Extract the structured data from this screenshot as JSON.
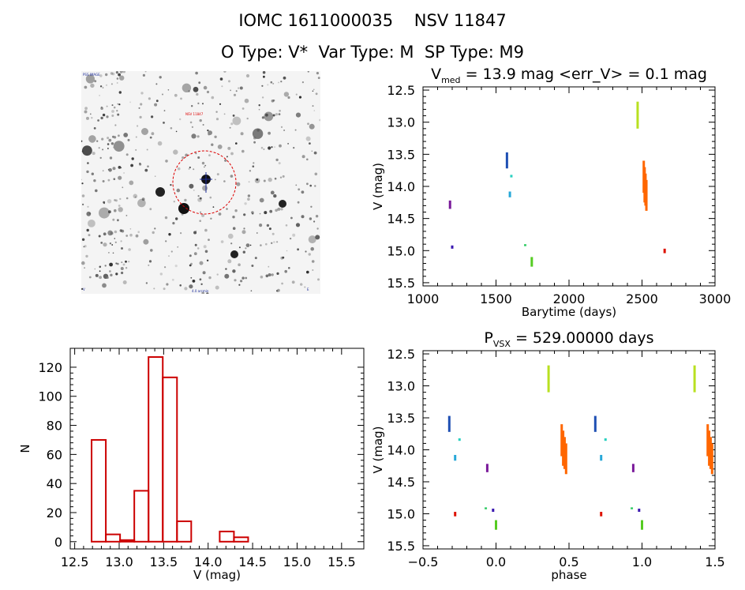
{
  "header": {
    "title_line1": "IOMC 1611000035    NSV 11847",
    "title_line2": "O Type: V*  Var Type: M  SP Type: M9"
  },
  "finder_chart": {
    "top_left_label": "PSS IMAGE",
    "target_label": "NSV 11847",
    "bottom_left_label": "V",
    "bottom_center_label": "4.0 arcmin",
    "bottom_right_label": "E"
  },
  "colors": {
    "hist_bar": "#cc0000",
    "circle": "#dd0000",
    "crosshair": "#1a2a9a"
  },
  "chart_data": [
    {
      "id": "lightcurve",
      "type": "scatter",
      "title_main": "V",
      "title_sub": "med",
      "title_rest": " = 13.9 mag <err_V> = 0.1 mag",
      "xlabel": "Barytime (days)",
      "ylabel": "V (mag)",
      "xlim": [
        1000,
        3000
      ],
      "ylim": [
        15.55,
        12.45
      ],
      "xticks": [
        "1000",
        "1500",
        "2000",
        "2500",
        "3000"
      ],
      "yticks": [
        "12.5",
        "13.0",
        "13.5",
        "14.0",
        "14.5",
        "15.0",
        "15.5"
      ],
      "series": [
        {
          "color": "#7a1a9a",
          "x": [
            1185
          ],
          "y_ranges": [
            [
              14.22,
              14.35
            ]
          ]
        },
        {
          "color": "#3a18b0",
          "x": [
            1200
          ],
          "y_ranges": [
            [
              14.92,
              14.97
            ]
          ]
        },
        {
          "color": "#1e4fb3",
          "x": [
            1575
          ],
          "y_ranges": [
            [
              13.47,
              13.72
            ]
          ]
        },
        {
          "color": "#27a8d8",
          "x": [
            1595
          ],
          "y_ranges": [
            [
              14.08,
              14.17
            ]
          ]
        },
        {
          "color": "#2ad0c0",
          "x": [
            1605
          ],
          "y_ranges": [
            [
              13.82,
              13.86
            ]
          ]
        },
        {
          "color": "#33cc66",
          "x": [
            1700
          ],
          "y_ranges": [
            [
              14.9,
              14.93
            ]
          ]
        },
        {
          "color": "#55cc22",
          "x": [
            1745
          ],
          "y_ranges": [
            [
              15.1,
              15.25
            ]
          ]
        },
        {
          "color": "#b8e020",
          "x": [
            2470
          ],
          "y_ranges": [
            [
              12.68,
              13.1
            ]
          ]
        },
        {
          "color": "#ff6600",
          "x": [
            2512,
            2518,
            2524,
            2530
          ],
          "y_ranges": [
            [
              13.6,
              14.1
            ],
            [
              13.7,
              14.25
            ],
            [
              13.8,
              14.3
            ],
            [
              13.9,
              14.38
            ]
          ]
        },
        {
          "color": "#dd1100",
          "x": [
            2655
          ],
          "y_ranges": [
            [
              14.97,
              15.04
            ]
          ]
        }
      ]
    },
    {
      "id": "histogram",
      "type": "bar",
      "xlabel": "V (mag)",
      "ylabel": "N",
      "xlim": [
        12.45,
        15.75
      ],
      "ylim": [
        -5,
        133
      ],
      "xticks": [
        "12.5",
        "13.0",
        "13.5",
        "14.0",
        "14.5",
        "15.0",
        "15.5"
      ],
      "yticks": [
        "0",
        "20",
        "40",
        "60",
        "80",
        "100",
        "120"
      ],
      "bin_width": 0.16,
      "bin_starts": [
        12.69,
        12.85,
        13.01,
        13.17,
        13.33,
        13.49,
        13.65,
        13.81,
        13.97,
        14.13,
        14.29,
        14.45,
        14.61,
        14.77,
        14.93,
        15.09
      ],
      "values": [
        70,
        5,
        0,
        35,
        127,
        113,
        14,
        0,
        0,
        7,
        3,
        0,
        0,
        0,
        0,
        0
      ]
    },
    {
      "id": "phased",
      "type": "scatter",
      "title_main": "P",
      "title_sub": "VSX",
      "title_rest": " = 529.00000 days",
      "xlabel": "phase",
      "ylabel": "V (mag)",
      "xlim": [
        -0.5,
        1.5
      ],
      "ylim": [
        15.55,
        12.45
      ],
      "xticks": [
        "−0.5",
        "0.0",
        "0.5",
        "1.0",
        "1.5"
      ],
      "yticks": [
        "12.5",
        "13.0",
        "13.5",
        "14.0",
        "14.5",
        "15.0",
        "15.5"
      ],
      "series": [
        {
          "color": "#1e4fb3",
          "x": [
            -0.32,
            0.68
          ],
          "y_ranges": [
            [
              13.47,
              13.72
            ],
            [
              13.47,
              13.72
            ]
          ]
        },
        {
          "color": "#27a8d8",
          "x": [
            -0.28,
            0.72
          ],
          "y_ranges": [
            [
              14.08,
              14.17
            ],
            [
              14.08,
              14.17
            ]
          ]
        },
        {
          "color": "#2ad0c0",
          "x": [
            -0.25,
            0.75
          ],
          "y_ranges": [
            [
              13.82,
              13.86
            ],
            [
              13.82,
              13.86
            ]
          ]
        },
        {
          "color": "#dd1100",
          "x": [
            -0.28,
            0.72
          ],
          "y_ranges": [
            [
              14.97,
              15.04
            ],
            [
              14.97,
              15.04
            ]
          ]
        },
        {
          "color": "#7a1a9a",
          "x": [
            -0.06,
            0.94
          ],
          "y_ranges": [
            [
              14.22,
              14.35
            ],
            [
              14.22,
              14.35
            ]
          ]
        },
        {
          "color": "#33cc66",
          "x": [
            -0.07,
            0.93
          ],
          "y_ranges": [
            [
              14.9,
              14.93
            ],
            [
              14.9,
              14.93
            ]
          ]
        },
        {
          "color": "#3a18b0",
          "x": [
            -0.02,
            0.98
          ],
          "y_ranges": [
            [
              14.92,
              14.97
            ],
            [
              14.92,
              14.97
            ]
          ]
        },
        {
          "color": "#55cc22",
          "x": [
            0.0,
            1.0
          ],
          "y_ranges": [
            [
              15.1,
              15.25
            ],
            [
              15.1,
              15.25
            ]
          ]
        },
        {
          "color": "#b8e020",
          "x": [
            0.36,
            1.36
          ],
          "y_ranges": [
            [
              12.68,
              13.1
            ],
            [
              12.68,
              13.1
            ]
          ]
        },
        {
          "color": "#ff6600",
          "x": [
            0.45,
            0.46,
            0.47,
            0.48,
            1.45,
            1.46,
            1.47,
            1.48
          ],
          "y_ranges": [
            [
              13.6,
              14.1
            ],
            [
              13.7,
              14.25
            ],
            [
              13.8,
              14.3
            ],
            [
              13.9,
              14.38
            ],
            [
              13.6,
              14.1
            ],
            [
              13.7,
              14.25
            ],
            [
              13.8,
              14.3
            ],
            [
              13.9,
              14.38
            ]
          ]
        }
      ]
    }
  ]
}
